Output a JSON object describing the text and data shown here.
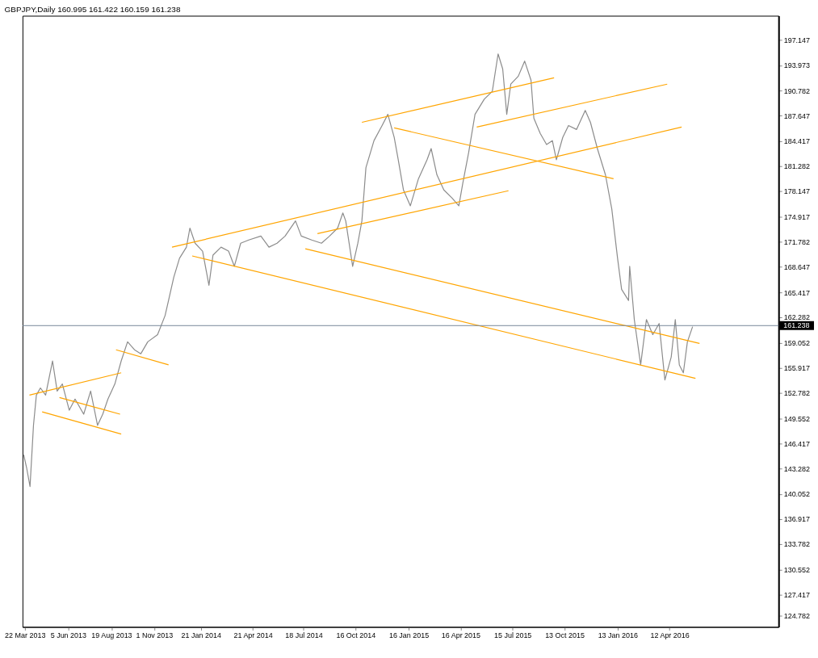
{
  "chart_data": {
    "type": "line",
    "title": "GBPJPY,Daily  160.995 161.422 160.159 161.238",
    "series": [
      {
        "color": "#8c8c8c",
        "x": [
          "2013-03-20",
          "2013-03-25",
          "2013-03-31",
          "2013-04-06",
          "2013-04-11",
          "2013-04-18",
          "2013-04-27",
          "2013-05-09",
          "2013-05-17",
          "2013-05-26",
          "2013-06-07",
          "2013-06-17",
          "2013-07-02",
          "2013-07-14",
          "2013-07-26",
          "2013-08-04",
          "2013-08-13",
          "2013-08-25",
          "2013-09-05",
          "2013-09-16",
          "2013-09-28",
          "2013-10-09",
          "2013-10-21",
          "2013-11-07",
          "2013-11-20",
          "2013-11-26",
          "2013-12-05",
          "2013-12-15",
          "2013-12-27",
          "2014-01-02",
          "2014-01-11",
          "2014-01-24",
          "2014-02-04",
          "2014-02-11",
          "2014-02-25",
          "2014-03-10",
          "2014-03-20",
          "2014-03-31",
          "2014-04-14",
          "2014-05-05",
          "2014-05-19",
          "2014-06-02",
          "2014-06-16",
          "2014-07-04",
          "2014-07-14",
          "2014-08-01",
          "2014-08-18",
          "2014-09-01",
          "2014-09-15",
          "2014-09-24",
          "2014-09-29",
          "2014-10-11",
          "2014-10-20",
          "2014-10-27",
          "2014-11-03",
          "2014-11-17",
          "2014-12-01",
          "2014-12-11",
          "2014-12-22",
          "2014-12-29",
          "2015-01-07",
          "2015-01-19",
          "2015-02-02",
          "2015-02-17",
          "2015-02-24",
          "2015-03-06",
          "2015-03-18",
          "2015-04-01",
          "2015-04-13",
          "2015-04-20",
          "2015-04-30",
          "2015-05-11",
          "2015-05-27",
          "2015-06-10",
          "2015-06-20",
          "2015-06-28",
          "2015-07-05",
          "2015-07-12",
          "2015-07-25",
          "2015-08-05",
          "2015-08-16",
          "2015-08-21",
          "2015-09-01",
          "2015-09-12",
          "2015-09-22",
          "2015-09-29",
          "2015-10-10",
          "2015-10-20",
          "2015-11-03",
          "2015-11-18",
          "2015-11-27",
          "2015-12-09",
          "2015-12-23",
          "2016-01-03",
          "2016-01-13",
          "2016-01-20",
          "2016-02-01",
          "2016-02-03",
          "2016-02-11",
          "2016-02-22",
          "2016-03-03",
          "2016-03-14",
          "2016-03-25",
          "2016-04-04",
          "2016-04-15",
          "2016-04-22",
          "2016-04-29",
          "2016-05-06",
          "2016-05-13",
          "2016-05-22"
        ],
        "values": [
          145.0,
          143.4,
          141.0,
          148.7,
          152.5,
          153.4,
          152.5,
          156.8,
          153.0,
          153.9,
          150.6,
          152.0,
          150.1,
          153.0,
          148.7,
          150.1,
          152.0,
          153.9,
          156.8,
          159.2,
          158.2,
          157.7,
          159.2,
          160.1,
          162.5,
          164.4,
          167.3,
          169.7,
          171.1,
          173.5,
          171.6,
          170.6,
          166.3,
          170.1,
          171.1,
          170.6,
          168.7,
          171.6,
          172.0,
          172.5,
          171.1,
          171.6,
          172.5,
          174.4,
          172.5,
          172.0,
          171.6,
          172.5,
          173.5,
          175.4,
          174.4,
          168.7,
          171.6,
          174.4,
          181.1,
          184.5,
          186.4,
          187.8,
          184.9,
          182.1,
          178.3,
          176.3,
          179.7,
          182.1,
          183.5,
          180.2,
          178.3,
          177.3,
          176.3,
          179.2,
          183.0,
          187.8,
          189.7,
          190.7,
          195.4,
          193.5,
          187.8,
          191.6,
          192.6,
          194.5,
          192.1,
          187.3,
          185.4,
          184.0,
          184.5,
          182.1,
          184.9,
          186.4,
          185.9,
          188.3,
          186.8,
          183.5,
          180.2,
          175.9,
          169.7,
          165.8,
          164.4,
          168.7,
          162.0,
          156.3,
          162.0,
          160.1,
          161.5,
          154.4,
          157.3,
          162.0,
          156.3,
          155.3,
          159.2,
          161.1
        ]
      },
      {
        "color": "#ffa500",
        "x": [
          "2013-03-30",
          "2013-09-05"
        ],
        "values": [
          152.5,
          155.3
        ]
      },
      {
        "color": "#ffa500",
        "x": [
          "2013-04-21",
          "2013-09-05"
        ],
        "values": [
          150.4,
          147.6
        ]
      },
      {
        "color": "#ffa500",
        "x": [
          "2013-05-21",
          "2013-09-03"
        ],
        "values": [
          152.2,
          150.1
        ]
      },
      {
        "color": "#ffa500",
        "x": [
          "2013-08-27",
          "2013-11-26"
        ],
        "values": [
          158.2,
          156.3
        ]
      },
      {
        "color": "#ffa500",
        "x": [
          "2013-12-02",
          "2016-05-03"
        ],
        "values": [
          171.1,
          186.2
        ]
      },
      {
        "color": "#ffa500",
        "x": [
          "2014-01-06",
          "2016-05-27"
        ],
        "values": [
          170.0,
          154.6
        ]
      },
      {
        "color": "#ffa500",
        "x": [
          "2014-07-21",
          "2016-06-03"
        ],
        "values": [
          170.9,
          159.0
        ]
      },
      {
        "color": "#ffa500",
        "x": [
          "2014-08-11",
          "2015-07-08"
        ],
        "values": [
          172.8,
          178.2
        ]
      },
      {
        "color": "#ffa500",
        "x": [
          "2014-10-27",
          "2015-09-25"
        ],
        "values": [
          186.8,
          192.4
        ]
      },
      {
        "color": "#ffa500",
        "x": [
          "2015-05-14",
          "2016-04-08"
        ],
        "values": [
          186.2,
          191.6
        ]
      },
      {
        "color": "#ffa500",
        "x": [
          "2014-12-22",
          "2016-01-06"
        ],
        "values": [
          186.1,
          179.7
        ]
      }
    ],
    "xlim": [
      "2013-03-18",
      "2016-10-18"
    ],
    "xticks": [
      {
        "value": "2013-03-22",
        "label": "22 Mar 2013"
      },
      {
        "value": "2013-06-05",
        "label": "5 Jun 2013"
      },
      {
        "value": "2013-08-19",
        "label": "19 Aug 2013"
      },
      {
        "value": "2013-11-01",
        "label": "1 Nov 2013"
      },
      {
        "value": "2014-01-21",
        "label": "21 Jan 2014"
      },
      {
        "value": "2014-04-21",
        "label": "21 Apr 2014"
      },
      {
        "value": "2014-07-18",
        "label": "18 Jul 2014"
      },
      {
        "value": "2014-10-16",
        "label": "16 Oct 2014"
      },
      {
        "value": "2015-01-16",
        "label": "16 Jan 2015"
      },
      {
        "value": "2015-04-16",
        "label": "16 Apr 2015"
      },
      {
        "value": "2015-07-15",
        "label": "15 Jul 2015"
      },
      {
        "value": "2015-10-13",
        "label": "13 Oct 2015"
      },
      {
        "value": "2016-01-13",
        "label": "13 Jan 2016"
      },
      {
        "value": "2016-04-12",
        "label": "12 Apr 2016"
      }
    ],
    "ylim": [
      123.35,
      200.2
    ],
    "yticks": [
      124.782,
      127.417,
      130.552,
      133.782,
      136.917,
      140.052,
      143.282,
      146.417,
      149.552,
      152.782,
      155.917,
      159.052,
      162.282,
      165.417,
      168.647,
      171.782,
      174.917,
      178.147,
      181.282,
      184.417,
      187.647,
      190.782,
      193.973,
      197.147
    ],
    "ref_lines": [
      {
        "axis": "y",
        "value": 161.238,
        "label": "161.238",
        "color": "#778899"
      }
    ],
    "grid": false
  }
}
